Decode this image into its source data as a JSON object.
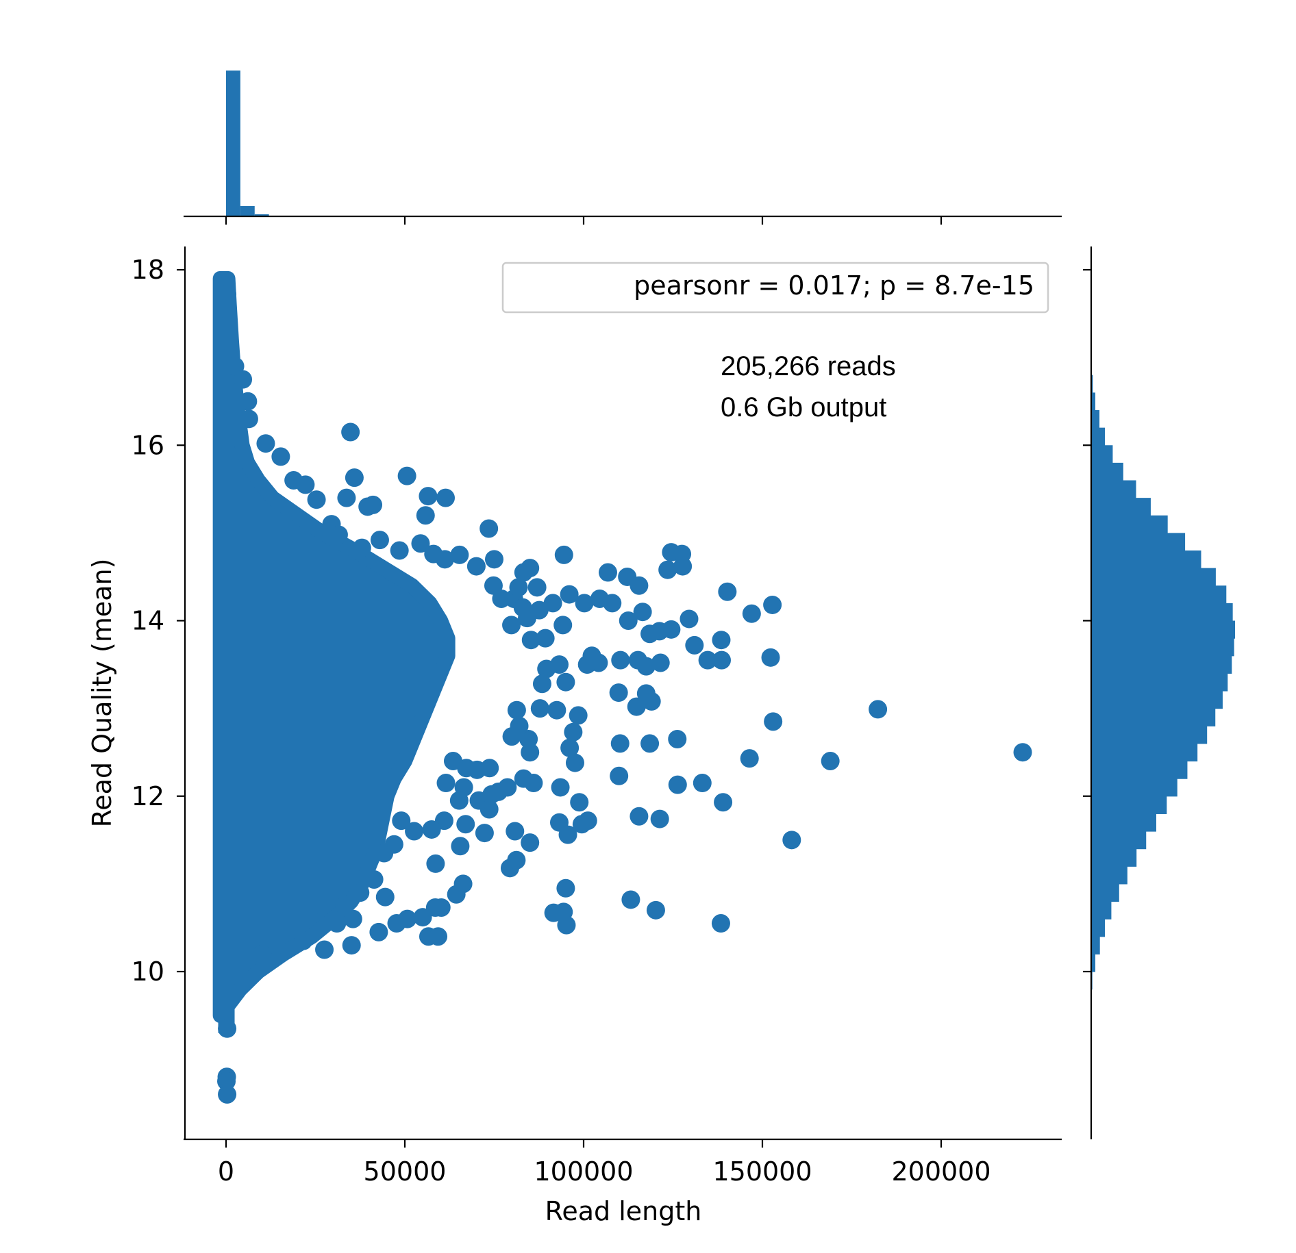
{
  "chart_data": {
    "type": "scatter",
    "xlabel": "Read length",
    "ylabel": "Read Quality (mean)",
    "xlim": [
      -11000,
      234000
    ],
    "ylim": [
      8.3,
      18.3
    ],
    "x_ticks": [
      0,
      50000,
      100000,
      150000,
      200000
    ],
    "y_ticks": [
      10,
      12,
      14,
      16,
      18
    ],
    "legend": {
      "text": "pearsonr = 0.017; p = 8.7e-15",
      "position": "top-right"
    },
    "annotation": [
      "205,266 reads",
      "0.6 Gb output"
    ],
    "grid": false,
    "color": "#2274b2",
    "points": [
      [
        34800,
        16.15
      ],
      [
        50600,
        15.65
      ],
      [
        35900,
        15.63
      ],
      [
        61400,
        15.4
      ],
      [
        56500,
        15.42
      ],
      [
        55800,
        15.2
      ],
      [
        41100,
        15.32
      ],
      [
        39600,
        15.3
      ],
      [
        33700,
        15.4
      ],
      [
        73500,
        15.05
      ],
      [
        94500,
        14.75
      ],
      [
        124500,
        14.78
      ],
      [
        127500,
        14.76
      ],
      [
        127700,
        14.62
      ],
      [
        123500,
        14.58
      ],
      [
        106800,
        14.55
      ],
      [
        112200,
        14.5
      ],
      [
        115500,
        14.4
      ],
      [
        140200,
        14.33
      ],
      [
        85000,
        14.6
      ],
      [
        96000,
        14.3
      ],
      [
        100200,
        14.2
      ],
      [
        104500,
        14.25
      ],
      [
        108000,
        14.2
      ],
      [
        116500,
        14.1
      ],
      [
        152800,
        14.18
      ],
      [
        147000,
        14.08
      ],
      [
        129500,
        14.02
      ],
      [
        112500,
        14.0
      ],
      [
        118500,
        13.85
      ],
      [
        121200,
        13.88
      ],
      [
        124500,
        13.9
      ],
      [
        138500,
        13.78
      ],
      [
        131000,
        13.72
      ],
      [
        134700,
        13.55
      ],
      [
        138600,
        13.55
      ],
      [
        152300,
        13.58
      ],
      [
        117500,
        13.48
      ],
      [
        121500,
        13.52
      ],
      [
        110300,
        13.55
      ],
      [
        115200,
        13.55
      ],
      [
        101000,
        13.5
      ],
      [
        104200,
        13.52
      ],
      [
        102300,
        13.6
      ],
      [
        93200,
        13.5
      ],
      [
        95000,
        13.3
      ],
      [
        109800,
        13.18
      ],
      [
        117500,
        13.17
      ],
      [
        119000,
        13.08
      ],
      [
        114800,
        13.02
      ],
      [
        182300,
        12.99
      ],
      [
        153000,
        12.85
      ],
      [
        98500,
        12.92
      ],
      [
        92500,
        12.98
      ],
      [
        97100,
        12.73
      ],
      [
        96100,
        12.55
      ],
      [
        110200,
        12.6
      ],
      [
        118500,
        12.6
      ],
      [
        126200,
        12.65
      ],
      [
        146400,
        12.43
      ],
      [
        169000,
        12.4
      ],
      [
        222800,
        12.5
      ],
      [
        97600,
        12.38
      ],
      [
        109900,
        12.23
      ],
      [
        126300,
        12.13
      ],
      [
        133200,
        12.15
      ],
      [
        139000,
        11.93
      ],
      [
        93500,
        12.1
      ],
      [
        98800,
        11.93
      ],
      [
        86000,
        12.15
      ],
      [
        115500,
        11.77
      ],
      [
        121300,
        11.74
      ],
      [
        99500,
        11.68
      ],
      [
        101200,
        11.72
      ],
      [
        93200,
        11.7
      ],
      [
        95600,
        11.56
      ],
      [
        158200,
        11.5
      ],
      [
        85000,
        11.47
      ],
      [
        80800,
        11.6
      ],
      [
        79400,
        11.18
      ],
      [
        81200,
        11.27
      ],
      [
        95000,
        10.95
      ],
      [
        113200,
        10.82
      ],
      [
        120200,
        10.7
      ],
      [
        91600,
        10.67
      ],
      [
        94400,
        10.68
      ],
      [
        95200,
        10.53
      ],
      [
        138400,
        10.55
      ],
      [
        72300,
        11.58
      ],
      [
        65500,
        11.43
      ],
      [
        58600,
        11.23
      ],
      [
        64400,
        10.88
      ],
      [
        66300,
        11.0
      ],
      [
        60200,
        10.73
      ],
      [
        58500,
        10.73
      ],
      [
        55000,
        10.62
      ],
      [
        50700,
        10.6
      ],
      [
        47700,
        10.55
      ],
      [
        42700,
        10.45
      ],
      [
        56600,
        10.4
      ],
      [
        59300,
        10.4
      ],
      [
        35500,
        10.6
      ],
      [
        31000,
        10.55
      ],
      [
        27500,
        10.25
      ],
      [
        35100,
        10.3
      ],
      [
        21600,
        10.35
      ],
      [
        14000,
        10.3
      ],
      [
        10000,
        10.2
      ],
      [
        4600,
        9.92
      ],
      [
        300,
        9.35
      ],
      [
        200,
        8.8
      ],
      [
        100,
        8.75
      ],
      [
        300,
        8.6
      ],
      [
        100,
        17.82
      ],
      [
        300,
        17.72
      ],
      [
        200,
        17.55
      ],
      [
        400,
        17.3
      ],
      [
        900,
        17.0
      ],
      [
        2500,
        16.9
      ],
      [
        4700,
        16.75
      ],
      [
        6100,
        16.5
      ],
      [
        6400,
        16.3
      ],
      [
        11100,
        16.02
      ],
      [
        15300,
        15.87
      ],
      [
        18900,
        15.6
      ],
      [
        22200,
        15.55
      ],
      [
        25300,
        15.38
      ],
      [
        29500,
        15.1
      ],
      [
        31500,
        14.98
      ],
      [
        38000,
        14.83
      ],
      [
        43000,
        14.92
      ],
      [
        48500,
        14.8
      ],
      [
        54400,
        14.88
      ],
      [
        58000,
        14.76
      ],
      [
        61200,
        14.7
      ],
      [
        65300,
        14.75
      ],
      [
        70000,
        14.62
      ],
      [
        75000,
        14.7
      ],
      [
        83200,
        14.55
      ],
      [
        87000,
        14.38
      ],
      [
        91400,
        14.2
      ],
      [
        94200,
        13.95
      ],
      [
        84200,
        14.03
      ],
      [
        79800,
        13.95
      ],
      [
        80500,
        14.25
      ],
      [
        77000,
        14.25
      ],
      [
        74800,
        14.4
      ],
      [
        81800,
        14.38
      ],
      [
        83000,
        14.15
      ],
      [
        87600,
        14.12
      ],
      [
        85300,
        13.78
      ],
      [
        89300,
        13.8
      ],
      [
        89600,
        13.45
      ],
      [
        88400,
        13.28
      ],
      [
        87800,
        13.0
      ],
      [
        84600,
        12.65
      ],
      [
        79900,
        12.68
      ],
      [
        81300,
        12.98
      ],
      [
        82000,
        12.8
      ],
      [
        85000,
        12.5
      ],
      [
        83200,
        12.2
      ],
      [
        78700,
        12.1
      ],
      [
        73700,
        12.32
      ],
      [
        70200,
        12.3
      ],
      [
        67200,
        12.32
      ],
      [
        63500,
        12.4
      ],
      [
        66500,
        12.1
      ],
      [
        61500,
        12.15
      ],
      [
        65200,
        11.95
      ],
      [
        70700,
        11.95
      ],
      [
        73600,
        11.85
      ],
      [
        74300,
        12.02
      ],
      [
        76200,
        12.05
      ],
      [
        67000,
        11.68
      ],
      [
        61000,
        11.72
      ],
      [
        57500,
        11.62
      ],
      [
        52600,
        11.6
      ],
      [
        49000,
        11.72
      ],
      [
        47000,
        11.45
      ],
      [
        44200,
        11.35
      ],
      [
        41400,
        11.05
      ],
      [
        44500,
        10.85
      ],
      [
        37500,
        10.9
      ],
      [
        33100,
        10.75
      ],
      [
        28200,
        10.85
      ],
      [
        24200,
        10.75
      ]
    ],
    "hist_x": [
      {
        "range": [
          0,
          4000
        ],
        "count": 198000
      },
      {
        "range": [
          4000,
          8000
        ],
        "count": 14000
      },
      {
        "range": [
          8000,
          12000
        ],
        "count": 2800
      },
      {
        "range": [
          12000,
          16000
        ],
        "count": 700
      },
      {
        "range": [
          16000,
          20000
        ],
        "count": 200
      }
    ],
    "hist_y": [
      {
        "range": [
          9.8,
          10.0
        ],
        "count": 250
      },
      {
        "range": [
          10.0,
          10.2
        ],
        "count": 900
      },
      {
        "range": [
          10.2,
          10.4
        ],
        "count": 1900
      },
      {
        "range": [
          10.4,
          10.6
        ],
        "count": 3000
      },
      {
        "range": [
          10.6,
          10.8
        ],
        "count": 4400
      },
      {
        "range": [
          10.8,
          11.0
        ],
        "count": 6100
      },
      {
        "range": [
          11.0,
          11.2
        ],
        "count": 7900
      },
      {
        "range": [
          11.2,
          11.4
        ],
        "count": 9900
      },
      {
        "range": [
          11.4,
          11.6
        ],
        "count": 12000
      },
      {
        "range": [
          11.6,
          11.8
        ],
        "count": 14200
      },
      {
        "range": [
          11.8,
          12.0
        ],
        "count": 16500
      },
      {
        "range": [
          12.0,
          12.2
        ],
        "count": 18800
      },
      {
        "range": [
          12.2,
          12.4
        ],
        "count": 21000
      },
      {
        "range": [
          12.4,
          12.6
        ],
        "count": 23200
      },
      {
        "range": [
          12.6,
          12.8
        ],
        "count": 25300
      },
      {
        "range": [
          12.8,
          13.0
        ],
        "count": 27100
      },
      {
        "range": [
          13.0,
          13.2
        ],
        "count": 28700
      },
      {
        "range": [
          13.2,
          13.4
        ],
        "count": 29800
      },
      {
        "range": [
          13.4,
          13.6
        ],
        "count": 30700
      },
      {
        "range": [
          13.6,
          13.8
        ],
        "count": 31200
      },
      {
        "range": [
          13.8,
          14.0
        ],
        "count": 31400
      },
      {
        "range": [
          14.0,
          14.2
        ],
        "count": 30900
      },
      {
        "range": [
          14.2,
          14.4
        ],
        "count": 29500
      },
      {
        "range": [
          14.4,
          14.6
        ],
        "count": 27200
      },
      {
        "range": [
          14.6,
          14.8
        ],
        "count": 24000
      },
      {
        "range": [
          14.8,
          15.0
        ],
        "count": 20500
      },
      {
        "range": [
          15.0,
          15.2
        ],
        "count": 16700
      },
      {
        "range": [
          15.2,
          15.4
        ],
        "count": 13000
      },
      {
        "range": [
          15.4,
          15.6
        ],
        "count": 9800
      },
      {
        "range": [
          15.6,
          15.8
        ],
        "count": 7000
      },
      {
        "range": [
          15.8,
          16.0
        ],
        "count": 4700
      },
      {
        "range": [
          16.0,
          16.2
        ],
        "count": 3000
      },
      {
        "range": [
          16.2,
          16.4
        ],
        "count": 1800
      },
      {
        "range": [
          16.4,
          16.6
        ],
        "count": 900
      },
      {
        "range": [
          16.6,
          16.8
        ],
        "count": 350
      }
    ],
    "hist_y_max": 31400
  }
}
